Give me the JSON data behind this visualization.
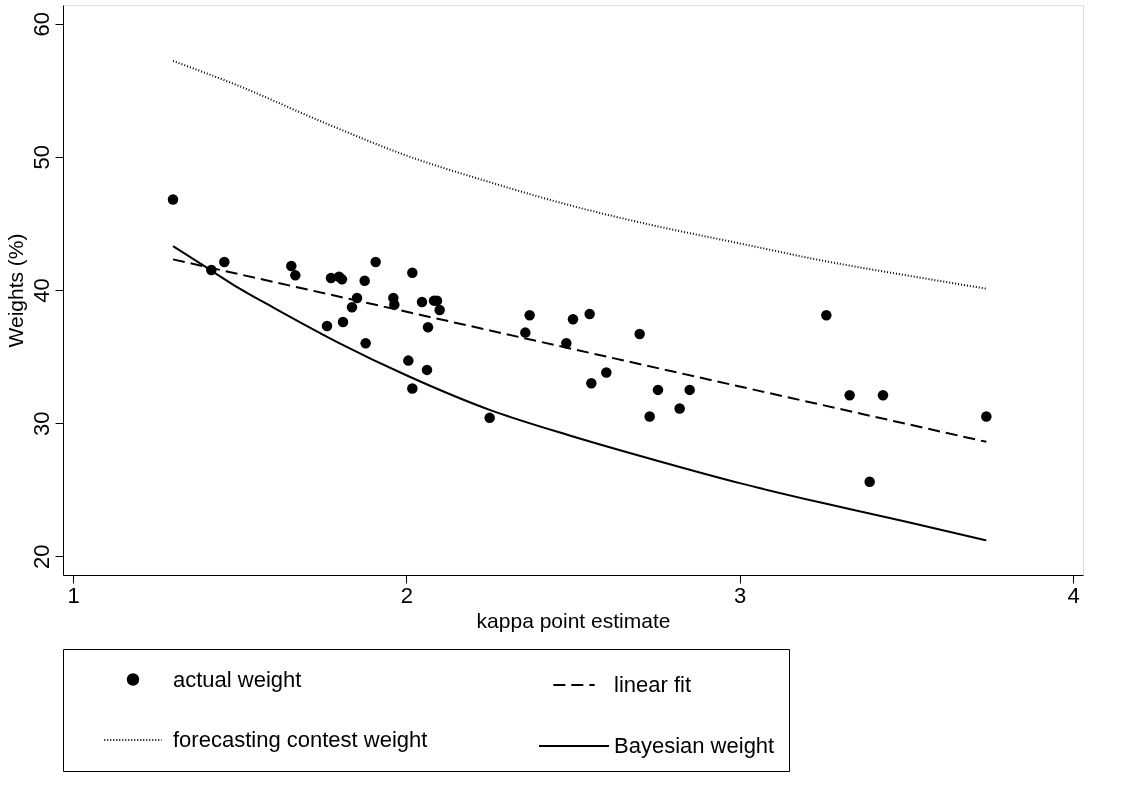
{
  "chart_data": {
    "type": "scatter",
    "xlabel": "kappa point estimate",
    "ylabel": "Weights (%)",
    "xlim": [
      0.97,
      4.03
    ],
    "ylim": [
      18.6,
      61.4
    ],
    "xticks": [
      1,
      2,
      3,
      4
    ],
    "yticks": [
      20,
      30,
      40,
      50,
      60
    ],
    "grid": false,
    "legend": "bottom",
    "series": [
      {
        "name": "actual weight",
        "type": "scatter",
        "marker": "circle",
        "color": "#000000",
        "x": [
          1.3,
          1.415,
          1.454,
          1.655,
          1.667,
          1.762,
          1.774,
          1.798,
          1.807,
          1.81,
          1.837,
          1.852,
          1.875,
          1.878,
          1.908,
          1.961,
          1.964,
          2.006,
          2.018,
          2.018,
          2.047,
          2.062,
          2.065,
          2.083,
          2.092,
          2.1,
          2.25,
          2.357,
          2.37,
          2.48,
          2.5,
          2.55,
          2.555,
          2.6,
          2.7,
          2.73,
          2.755,
          2.82,
          2.85,
          3.26,
          3.33,
          3.39,
          3.43,
          3.74
        ],
        "values": [
          46.8,
          41.5,
          42.1,
          41.8,
          41.1,
          37.3,
          40.9,
          41.0,
          40.8,
          37.6,
          38.7,
          39.4,
          40.7,
          36.0,
          42.1,
          39.4,
          38.9,
          34.7,
          41.3,
          32.6,
          39.1,
          34.0,
          37.2,
          39.2,
          39.2,
          38.5,
          30.4,
          36.8,
          38.1,
          36.0,
          37.8,
          38.2,
          33.0,
          33.8,
          36.7,
          30.5,
          32.5,
          31.1,
          32.5,
          38.1,
          32.1,
          25.6,
          32.1,
          30.5
        ]
      },
      {
        "name": "linear fit",
        "type": "line",
        "line_style": "dashed",
        "color": "#000000",
        "x": [
          1.3,
          3.74
        ],
        "values": [
          42.3,
          28.6
        ]
      },
      {
        "name": "forecasting contest weight",
        "type": "line",
        "line_style": "dotted",
        "color": "#000000",
        "x": [
          1.3,
          1.5,
          1.75,
          2.0,
          2.25,
          2.5,
          2.75,
          3.0,
          3.25,
          3.5,
          3.74
        ],
        "values": [
          57.2,
          55.3,
          52.6,
          50.1,
          48.1,
          46.3,
          44.8,
          43.5,
          42.2,
          41.1,
          40.1
        ]
      },
      {
        "name": "Bayesian weight",
        "type": "line",
        "line_style": "solid",
        "color": "#000000",
        "x": [
          1.3,
          1.4,
          1.5,
          1.6,
          1.8,
          2.0,
          2.25,
          2.5,
          2.75,
          3.0,
          3.25,
          3.5,
          3.74
        ],
        "values": [
          43.3,
          41.7,
          40.1,
          38.7,
          36.0,
          33.6,
          31.0,
          29.0,
          27.2,
          25.5,
          24.0,
          22.6,
          21.2
        ]
      }
    ]
  }
}
